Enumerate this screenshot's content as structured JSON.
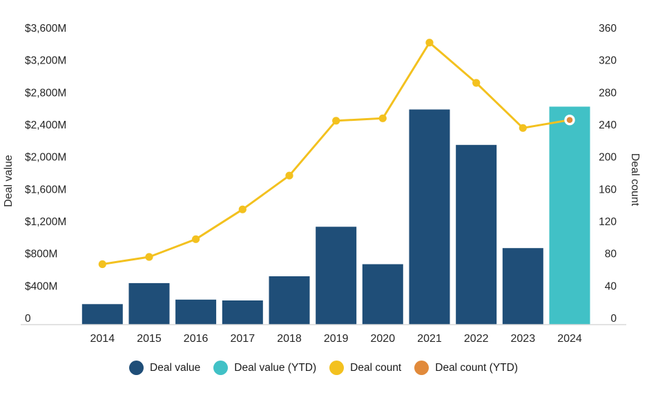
{
  "chart_data": {
    "type": "bar+line",
    "title": "",
    "categories": [
      "2014",
      "2015",
      "2016",
      "2017",
      "2018",
      "2019",
      "2020",
      "2021",
      "2022",
      "2023",
      "2024"
    ],
    "series": [
      {
        "name": "Deal value",
        "type": "bar",
        "axis": "left",
        "color": "#1F4E78",
        "values": [
          255,
          515,
          310,
          300,
          600,
          1215,
          750,
          2670,
          2230,
          950,
          null
        ]
      },
      {
        "name": "Deal value (YTD)",
        "type": "bar",
        "axis": "left",
        "color": "#41C1C6",
        "values": [
          null,
          null,
          null,
          null,
          null,
          null,
          null,
          null,
          null,
          null,
          2705
        ]
      },
      {
        "name": "Deal count",
        "type": "line",
        "axis": "right",
        "color": "#F3C11F",
        "values": [
          75,
          84,
          106,
          143,
          185,
          253,
          256,
          350,
          300,
          244,
          null
        ]
      },
      {
        "name": "Deal count (YTD)",
        "type": "point",
        "axis": "right",
        "color": "#E18A3B",
        "values": [
          null,
          null,
          null,
          null,
          null,
          null,
          null,
          null,
          null,
          null,
          254
        ]
      }
    ],
    "left_axis": {
      "title": "Deal value",
      "min": 0,
      "max": 3600,
      "step": 400,
      "tick_labels": [
        "0",
        "$400M",
        "$800M",
        "$1,200M",
        "$1,600M",
        "$2,000M",
        "$2,400M",
        "$2,800M",
        "$3,200M",
        "$3,600M"
      ]
    },
    "right_axis": {
      "title": "Deal count",
      "min": 0,
      "max": 360,
      "step": 40,
      "tick_labels": [
        "0",
        "40",
        "80",
        "120",
        "160",
        "200",
        "240",
        "280",
        "320",
        "360"
      ]
    },
    "legend_position": "bottom",
    "grid": false,
    "legend": [
      {
        "label": "Deal value",
        "color": "#1F4E78"
      },
      {
        "label": "Deal value (YTD)",
        "color": "#41C1C6"
      },
      {
        "label": "Deal count",
        "color": "#F3C11F"
      },
      {
        "label": "Deal count (YTD)",
        "color": "#E18A3B"
      }
    ]
  },
  "colors": {
    "bar_navy": "#1F4E78",
    "bar_teal": "#41C1C6",
    "line_yellow": "#F3C11F",
    "point_orange": "#E18A3B",
    "axis_line": "#D9D9D9",
    "text": "#252525",
    "background": "#FFFFFF"
  }
}
